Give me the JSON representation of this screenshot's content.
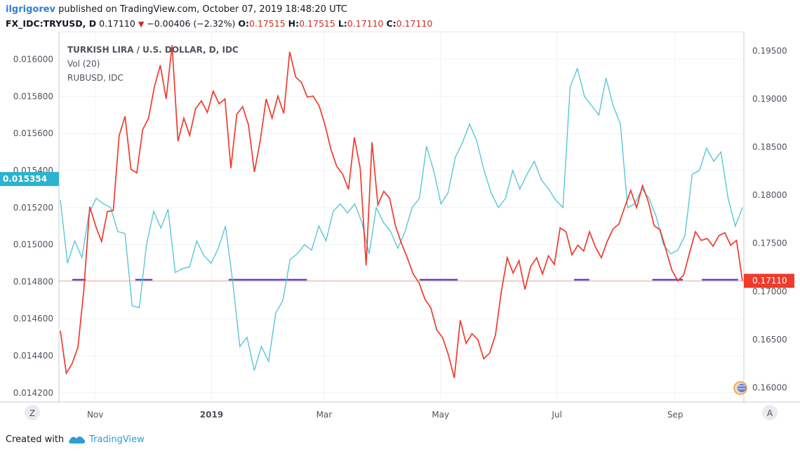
{
  "header": {
    "user": "ilgrigorev",
    "published_text": "published on TradingView.com, October 07, 2019 18:48:20 UTC"
  },
  "quote": {
    "symbol": "FX_IDC:TRYUSD, D",
    "price": "0.17110",
    "change": "−0.00406 (−2.32%)",
    "o_label": "O:",
    "o_value": "0.17515",
    "h_label": "H:",
    "h_value": "0.17515",
    "l_label": "L:",
    "l_value": "0.17110",
    "c_label": "C:",
    "c_value": "0.17110"
  },
  "legend": {
    "main": "TURKISH LIRA / U.S. DOLLAR, D, IDC",
    "vol": "Vol (20)",
    "compare": "RUBUSD, IDC"
  },
  "buttons": {
    "zoom": "Z",
    "auto": "A"
  },
  "footer": {
    "created_with": "Created with",
    "brand": "TradingView"
  },
  "colors": {
    "try_line": "#ef3b2c",
    "rub_line": "#4dc3d6",
    "vol_bars": "#3b2bdc",
    "price_line": "#f4a7a7",
    "left_badge": "#2bb3cf",
    "right_badge": "#ef3b2c"
  },
  "chart_data": {
    "type": "line",
    "x_labels": [
      "Nov",
      "2019",
      "Mar",
      "May",
      "Jul",
      "Sep"
    ],
    "left_axis": {
      "ticks": [
        "0.016000",
        "0.015800",
        "0.015600",
        "0.015400",
        "0.015200",
        "0.015000",
        "0.014800",
        "0.014600",
        "0.014400",
        "0.014200"
      ],
      "range": [
        0.01415,
        0.01615
      ],
      "current_badge": "0.015354"
    },
    "right_axis": {
      "ticks": [
        "0.19500",
        "0.19000",
        "0.18500",
        "0.18000",
        "0.17500",
        "0.17000",
        "0.16500",
        "0.16000"
      ],
      "range": [
        0.1585,
        0.197
      ],
      "current_badge": "0.17110"
    },
    "series": [
      {
        "name": "TURKISH LIRA / U.S. DOLLAR, D, IDC",
        "axis": "right",
        "values": [
          0.1659,
          0.1615,
          0.1625,
          0.1642,
          0.1702,
          0.1788,
          0.1768,
          0.1752,
          0.1783,
          0.1784,
          0.1862,
          0.1882,
          0.1827,
          0.1823,
          0.1868,
          0.188,
          0.1913,
          0.1935,
          0.19,
          0.1956,
          0.1856,
          0.188,
          0.1862,
          0.189,
          0.1898,
          0.1886,
          0.1908,
          0.1895,
          0.19,
          0.1828,
          0.1884,
          0.1892,
          0.1873,
          0.1824,
          0.1857,
          0.19,
          0.188,
          0.1903,
          0.1885,
          0.1949,
          0.1923,
          0.1917,
          0.1902,
          0.1903,
          0.1893,
          0.1873,
          0.1848,
          0.183,
          0.1822,
          0.1806,
          0.186,
          0.1828,
          0.1727,
          0.1855,
          0.179,
          0.1804,
          0.1797,
          0.1768,
          0.175,
          0.1735,
          0.1718,
          0.1709,
          0.1692,
          0.1683,
          0.166,
          0.1652,
          0.1634,
          0.161,
          0.167,
          0.1646,
          0.1656,
          0.165,
          0.163,
          0.1636,
          0.1655,
          0.17,
          0.1735,
          0.1719,
          0.1732,
          0.1702,
          0.1726,
          0.1735,
          0.1718,
          0.1737,
          0.1728,
          0.1766,
          0.1762,
          0.1738,
          0.1748,
          0.1742,
          0.1762,
          0.1746,
          0.1735,
          0.1752,
          0.1765,
          0.177,
          0.1788,
          0.1805,
          0.1787,
          0.181,
          0.1793,
          0.1768,
          0.1764,
          0.1743,
          0.1722,
          0.1711,
          0.1717,
          0.174,
          0.1762,
          0.1753,
          0.1755,
          0.1747,
          0.1758,
          0.1761,
          0.1748,
          0.1753,
          0.1711
        ]
      },
      {
        "name": "RUBUSD, IDC",
        "axis": "left",
        "values": [
          0.01524,
          0.0149,
          0.01502,
          0.01493,
          0.01517,
          0.01525,
          0.01522,
          0.0152,
          0.01507,
          0.01506,
          0.01467,
          0.01466,
          0.015,
          0.01518,
          0.01509,
          0.01519,
          0.01485,
          0.01487,
          0.01488,
          0.01502,
          0.01494,
          0.0149,
          0.01498,
          0.0151,
          0.0148,
          0.01445,
          0.0145,
          0.01432,
          0.01445,
          0.01437,
          0.01463,
          0.0147,
          0.01492,
          0.01495,
          0.015,
          0.01497,
          0.0151,
          0.01502,
          0.01518,
          0.01522,
          0.01517,
          0.01522,
          0.01512,
          0.01495,
          0.0152,
          0.01512,
          0.01507,
          0.01498,
          0.01507,
          0.0152,
          0.01525,
          0.01553,
          0.0154,
          0.01522,
          0.01528,
          0.01547,
          0.01555,
          0.01565,
          0.01556,
          0.0154,
          0.01528,
          0.0152,
          0.01525,
          0.0154,
          0.0153,
          0.01538,
          0.01545,
          0.01535,
          0.0153,
          0.01524,
          0.0152,
          0.01585,
          0.01595,
          0.0158,
          0.01575,
          0.0157,
          0.0159,
          0.01575,
          0.01565,
          0.0152,
          0.01522,
          0.0153,
          0.01525,
          0.01515,
          0.015,
          0.01495,
          0.01497,
          0.01505,
          0.01538,
          0.0154,
          0.01552,
          0.01545,
          0.0155,
          0.01525,
          0.0151,
          0.0152
        ]
      },
      {
        "name": "Vol (20)",
        "axis": "left",
        "segments": [
          [
            "Oct 20",
            "Oct 27"
          ],
          [
            "Nov 22",
            "Dec 01"
          ],
          [
            "Jan 10",
            "Feb 20"
          ],
          [
            "Apr 20",
            "May 10"
          ],
          [
            "Jul 10",
            "Jul 18"
          ],
          [
            "Aug 20",
            "Sep 05"
          ],
          [
            "Sep 15",
            "Oct 04"
          ]
        ]
      }
    ],
    "grid": true
  }
}
